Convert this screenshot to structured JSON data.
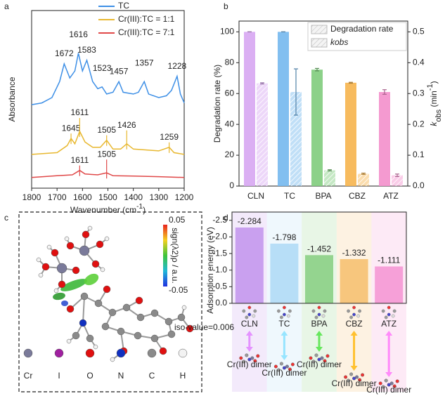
{
  "panel_labels": [
    "a",
    "b",
    "c",
    "d"
  ],
  "chart_data": [
    {
      "type": "line",
      "xlabel": [
        "Wavenumber (cm",
        "-1",
        ")"
      ],
      "ylabel": "Absorbance",
      "xlim": [
        1800,
        1200
      ],
      "xticks": [
        1800,
        1700,
        1600,
        1500,
        1400,
        1300,
        1200
      ],
      "ylim": [
        0,
        100
      ],
      "series": [
        {
          "name": "TC",
          "color": "#3d8fe6",
          "x": [
            1800,
            1760,
            1720,
            1690,
            1672,
            1650,
            1630,
            1616,
            1600,
            1583,
            1560,
            1540,
            1523,
            1505,
            1480,
            1457,
            1440,
            1400,
            1380,
            1357,
            1340,
            1300,
            1270,
            1250,
            1228,
            1215,
            1200
          ],
          "values": [
            47,
            48,
            51,
            60,
            70,
            62,
            66,
            76,
            66,
            72,
            60,
            56,
            57,
            53,
            54,
            60,
            54,
            53,
            54,
            60,
            53,
            51,
            52,
            55,
            63,
            53,
            48
          ],
          "peaks": [
            1672,
            1616,
            1583,
            1523,
            1457,
            1357,
            1228
          ]
        },
        {
          "name": "Cr(III):TC = 1:1",
          "color": "#e8b830",
          "x": [
            1800,
            1700,
            1660,
            1645,
            1630,
            1611,
            1590,
            1560,
            1530,
            1505,
            1480,
            1450,
            1426,
            1400,
            1300,
            1259,
            1240,
            1200
          ],
          "values": [
            19,
            20,
            24,
            28,
            25,
            32,
            26,
            23,
            23,
            27,
            22,
            22,
            25,
            22,
            21,
            23,
            20,
            19
          ],
          "peaks": [
            1645,
            1611,
            1505,
            1426,
            1259
          ]
        },
        {
          "name": "Cr(III):TC = 7:1",
          "color": "#e04848",
          "x": [
            1800,
            1700,
            1640,
            1611,
            1590,
            1540,
            1505,
            1480,
            1400,
            1300,
            1200
          ],
          "values": [
            6,
            7,
            7.5,
            10,
            8,
            7.5,
            8.6,
            7,
            6.8,
            6.5,
            6
          ],
          "peaks": [
            1611,
            1505
          ]
        }
      ]
    },
    {
      "type": "bar",
      "ylabel": "Degradation rate (%)",
      "y2label": [
        "k",
        "obs",
        " (min",
        "-1",
        ")"
      ],
      "categories": [
        "CLN",
        "TC",
        "BPA",
        "CBZ",
        "ATZ"
      ],
      "colors": [
        "#d7a6f2",
        "#74b8ee",
        "#7fcc7c",
        "#f6b44c",
        "#f38fcb"
      ],
      "ylim": [
        0,
        107
      ],
      "yticks": [
        0,
        20,
        40,
        60,
        80,
        100
      ],
      "y2lim": [
        0,
        0.535
      ],
      "y2ticks": [
        {
          "value": 0,
          "label": "0.0"
        },
        0.1,
        0.2,
        0.3,
        0.4,
        0.5
      ],
      "series": [
        {
          "name": "Degradation rate",
          "values": [
            100,
            100,
            75.5,
            67,
            61
          ],
          "errors": [
            0,
            0,
            0.8,
            0.3,
            1.5
          ]
        },
        {
          "name": "kobs",
          "axis": "y2",
          "values": [
            0.333,
            0.305,
            0.051,
            0.04,
            0.035
          ],
          "errors": [
            0.002,
            0.075,
            0.002,
            0.002,
            0.004
          ]
        }
      ]
    },
    {
      "type": "bar",
      "ylabel": "Adsorption energy (eV)",
      "categories": [
        "CLN",
        "TC",
        "BPA",
        "CBZ",
        "ATZ"
      ],
      "colors": [
        "#c9a0ef",
        "#b7def7",
        "#94d48f",
        "#f7c67d",
        "#f6a0d8"
      ],
      "value_colors": [
        "#9b30d9",
        "#3a8fd0",
        "#2f2f2f",
        "#7a6a00",
        "#c0249a"
      ],
      "values": [
        -2.284,
        -1.798,
        -1.452,
        -1.332,
        -1.111
      ],
      "ylim": [
        0,
        -2.75
      ],
      "yticks": [
        {
          "value": 0,
          "label": "0.0"
        },
        -0.5,
        {
          "value": -1,
          "label": "-1.0"
        },
        -1.5,
        {
          "value": -2,
          "label": "-2.0"
        },
        -2.5
      ],
      "annotation": "Cr(III) dimer"
    }
  ],
  "diagram": {
    "colorbar": {
      "ticks": [
        0.05,
        -0.05
      ],
      "label": "sign(λ2)ρ / a.u."
    },
    "iso_label": "iso-value=0.006",
    "atoms": [
      "Cr",
      "I",
      "O",
      "N",
      "C",
      "H"
    ]
  }
}
